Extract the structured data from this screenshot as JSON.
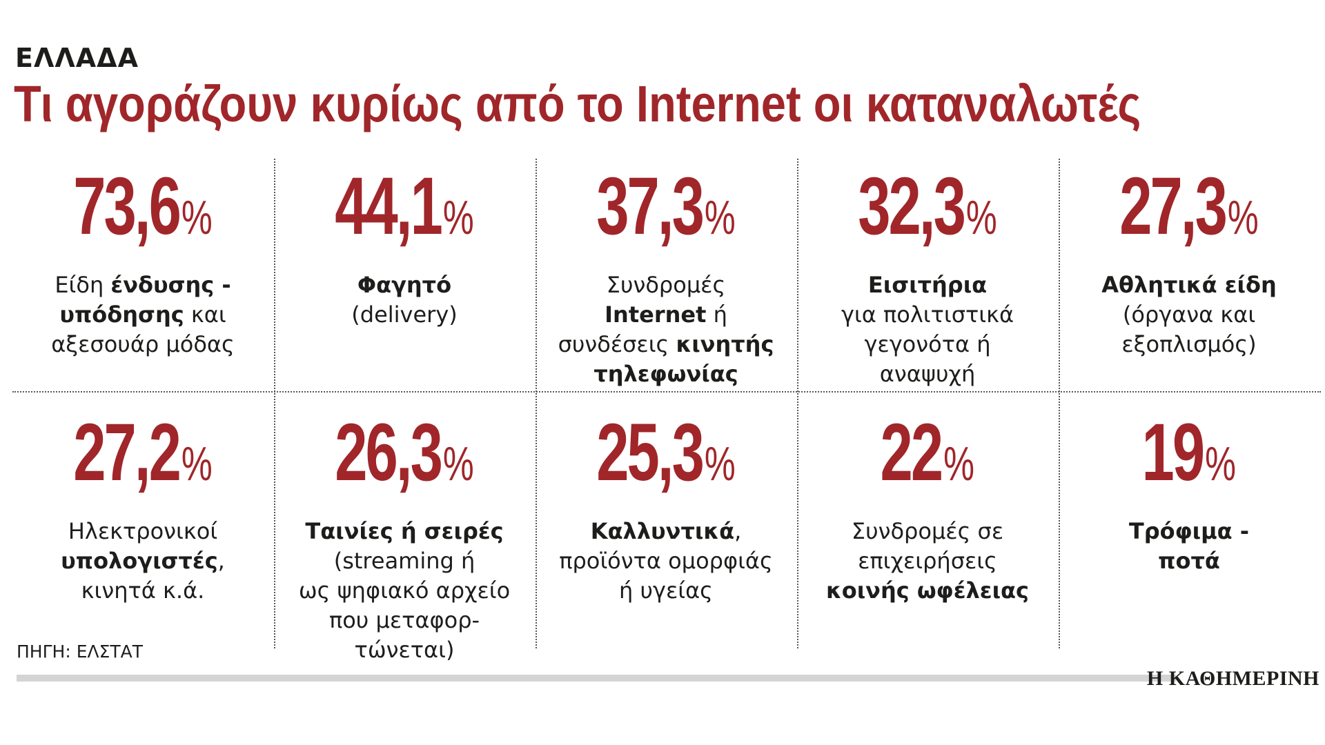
{
  "header": {
    "kicker": "ΕΛΛΑΔΑ",
    "title": "Τι αγοράζουν κυρίως από το Internet οι καταναλωτές"
  },
  "chart_data": {
    "type": "table",
    "unit": "%",
    "items": [
      {
        "value": "73,6",
        "label": [
          [
            [
              "Είδη ",
              false
            ],
            [
              "ένδυσης -",
              true
            ]
          ],
          [
            [
              "υπόδησης",
              true
            ],
            [
              " και",
              false
            ]
          ],
          [
            [
              "αξεσουάρ μόδας",
              false
            ]
          ]
        ]
      },
      {
        "value": "44,1",
        "label": [
          [
            [
              "Φαγητό",
              true
            ]
          ],
          [
            [
              "(delivery)",
              false
            ]
          ]
        ]
      },
      {
        "value": "37,3",
        "label": [
          [
            [
              "Συνδρομές",
              false
            ]
          ],
          [
            [
              "Internet",
              true
            ],
            [
              " ή",
              false
            ]
          ],
          [
            [
              "συνδέσεις ",
              false
            ],
            [
              "κινητής",
              true
            ]
          ],
          [
            [
              "τηλεφωνίας",
              true
            ]
          ]
        ]
      },
      {
        "value": "32,3",
        "label": [
          [
            [
              "Εισιτήρια",
              true
            ]
          ],
          [
            [
              "για πολιτιστικά",
              false
            ]
          ],
          [
            [
              "γεγονότα ή",
              false
            ]
          ],
          [
            [
              "αναψυχή",
              false
            ]
          ]
        ]
      },
      {
        "value": "27,3",
        "label": [
          [
            [
              "Αθλητικά είδη",
              true
            ]
          ],
          [
            [
              "(όργανα και",
              false
            ]
          ],
          [
            [
              "εξοπλισμός)",
              false
            ]
          ]
        ]
      },
      {
        "value": "27,2",
        "label": [
          [
            [
              "Ηλεκτρονικοί",
              false
            ]
          ],
          [
            [
              "υπολογιστές",
              true
            ],
            [
              ",",
              false
            ]
          ],
          [
            [
              "κινητά κ.ά.",
              false
            ]
          ]
        ]
      },
      {
        "value": "26,3",
        "label": [
          [
            [
              "Ταινίες ή σειρές",
              true
            ]
          ],
          [
            [
              "(streaming ή",
              false
            ]
          ],
          [
            [
              "ως ψηφιακό αρχείο",
              false
            ]
          ],
          [
            [
              "που μεταφορ-",
              false
            ]
          ],
          [
            [
              "τώνεται)",
              false
            ]
          ]
        ]
      },
      {
        "value": "25,3",
        "label": [
          [
            [
              "Καλλυντικά",
              true
            ],
            [
              ",",
              false
            ]
          ],
          [
            [
              "προϊόντα ομορφιάς",
              false
            ]
          ],
          [
            [
              "ή υγείας",
              false
            ]
          ]
        ]
      },
      {
        "value": "22",
        "label": [
          [
            [
              "Συνδρομές σε",
              false
            ]
          ],
          [
            [
              "επιχειρήσεις",
              false
            ]
          ],
          [
            [
              "κοινής ωφέλειας",
              true
            ]
          ]
        ]
      },
      {
        "value": "19",
        "label": [
          [
            [
              "Τρόφιμα -",
              true
            ]
          ],
          [
            [
              "ποτά",
              true
            ]
          ]
        ]
      }
    ]
  },
  "footer": {
    "source": "ΠΗΓΗ: ΕΛΣΤΑΤ",
    "brand": "Η ΚΑΘΗΜΕΡΙΝΗ"
  },
  "colors": {
    "accent": "#a0262a",
    "text": "#1d1d1b",
    "rule": "#d4d4d4"
  }
}
